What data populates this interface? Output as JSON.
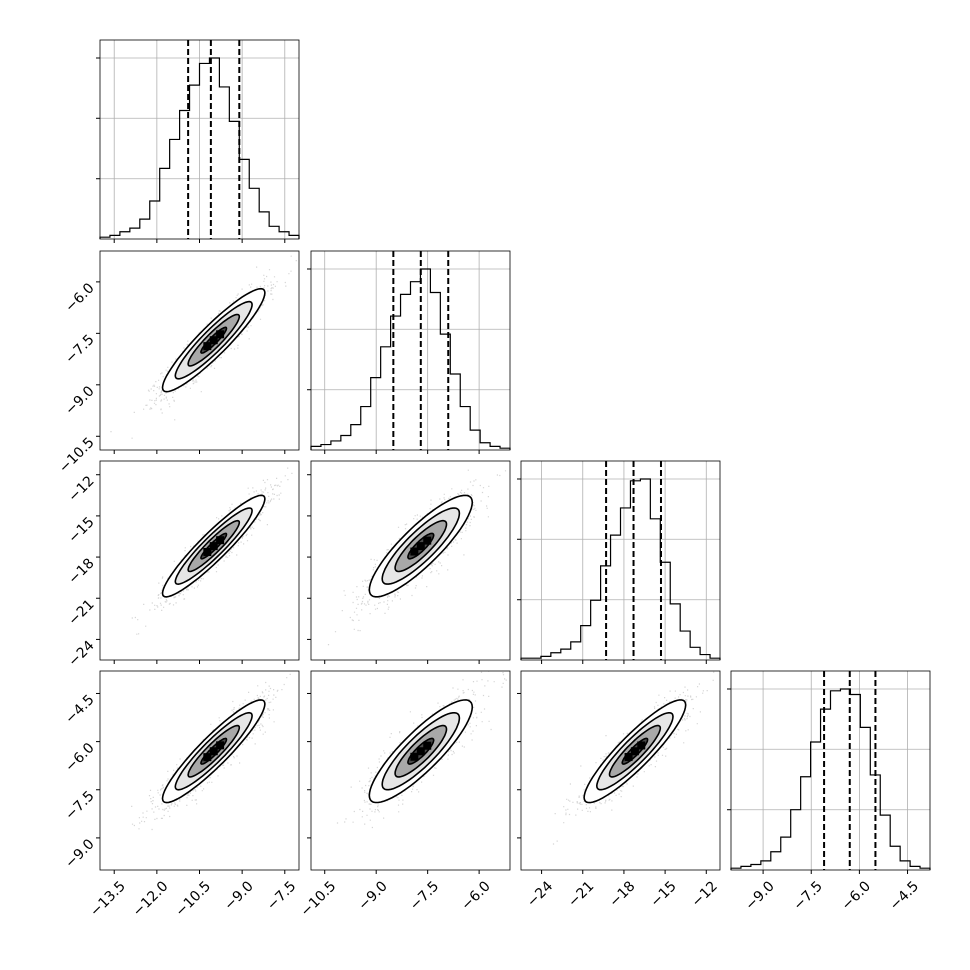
{
  "chart_data": {
    "type": "corner",
    "grid": true,
    "parameters": [
      {
        "range": [
          -14.0,
          -7.0
        ],
        "ticks": [
          -13.5,
          -12.0,
          -10.5,
          -9.0,
          -7.5
        ],
        "tick_labels": [
          "−13.5",
          "−12.0",
          "−10.5",
          "−9.0",
          "−7.5"
        ],
        "quantiles": [
          -10.9,
          -10.1,
          -9.1
        ],
        "histogram": {
          "edges_start": -14.0,
          "bin_width": 0.35,
          "counts": [
            0.01,
            0.02,
            0.04,
            0.06,
            0.11,
            0.21,
            0.39,
            0.55,
            0.71,
            0.85,
            0.97,
            1.0,
            0.84,
            0.65,
            0.44,
            0.28,
            0.15,
            0.07,
            0.04,
            0.02
          ]
        }
      },
      {
        "range": [
          -10.9,
          -5.1
        ],
        "ticks": [
          -10.5,
          -9.0,
          -7.5,
          -6.0
        ],
        "tick_labels": [
          "−10.5",
          "−9.0",
          "−7.5",
          "−6.0"
        ],
        "quantiles": [
          -8.5,
          -7.7,
          -6.9
        ],
        "histogram": {
          "edges_start": -10.9,
          "bin_width": 0.29,
          "counts": [
            0.02,
            0.03,
            0.05,
            0.08,
            0.14,
            0.24,
            0.4,
            0.57,
            0.74,
            0.86,
            0.93,
            1.0,
            0.87,
            0.64,
            0.42,
            0.24,
            0.11,
            0.04,
            0.02,
            0.01
          ]
        }
      },
      {
        "range": [
          -25.5,
          -11.0
        ],
        "ticks": [
          -24,
          -21,
          -18,
          -15,
          -12
        ],
        "tick_labels": [
          "−24",
          "−21",
          "−18",
          "−15",
          "−12"
        ],
        "quantiles": [
          -19.3,
          -17.3,
          -15.3
        ],
        "histogram": {
          "edges_start": -25.5,
          "bin_width": 0.725,
          "counts": [
            0.01,
            0.01,
            0.02,
            0.04,
            0.06,
            0.1,
            0.19,
            0.33,
            0.52,
            0.69,
            0.84,
            0.99,
            1.0,
            0.78,
            0.54,
            0.31,
            0.16,
            0.07,
            0.03,
            0.01
          ]
        }
      },
      {
        "range": [
          -10.0,
          -3.8
        ],
        "ticks": [
          -9.0,
          -7.5,
          -6.0,
          -4.5
        ],
        "tick_labels": [
          "−9.0",
          "−7.5",
          "−6.0",
          "−4.5"
        ],
        "quantiles": [
          -7.1,
          -6.3,
          -5.5
        ],
        "histogram": {
          "edges_start": -10.0,
          "bin_width": 0.31,
          "counts": [
            0.01,
            0.02,
            0.03,
            0.05,
            0.1,
            0.18,
            0.33,
            0.51,
            0.7,
            0.88,
            0.98,
            0.99,
            0.96,
            0.78,
            0.52,
            0.3,
            0.13,
            0.05,
            0.02,
            0.01
          ]
        }
      }
    ],
    "pairs": [
      {
        "row": 1,
        "col": 0,
        "mean": [
          -10.0,
          -7.7
        ],
        "sd": [
          0.9,
          0.75
        ],
        "rho": 0.92
      },
      {
        "row": 2,
        "col": 0,
        "mean": [
          -10.0,
          -17.2
        ],
        "sd": [
          0.9,
          1.85
        ],
        "rho": 0.93
      },
      {
        "row": 2,
        "col": 1,
        "mean": [
          -7.7,
          -17.2
        ],
        "sd": [
          0.75,
          1.85
        ],
        "rho": 0.86
      },
      {
        "row": 3,
        "col": 0,
        "mean": [
          -10.0,
          -6.3
        ],
        "sd": [
          0.9,
          0.8
        ],
        "rho": 0.92
      },
      {
        "row": 3,
        "col": 1,
        "mean": [
          -7.7,
          -6.3
        ],
        "sd": [
          0.75,
          0.8
        ],
        "rho": 0.86
      },
      {
        "row": 3,
        "col": 2,
        "mean": [
          -17.2,
          -6.3
        ],
        "sd": [
          1.85,
          0.8
        ],
        "rho": 0.9
      }
    ]
  }
}
